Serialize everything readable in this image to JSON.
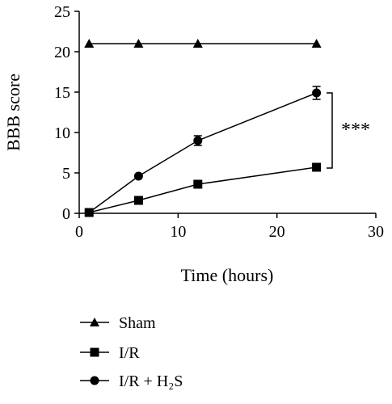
{
  "chart_data": {
    "type": "line",
    "xlabel": "Time (hours)",
    "ylabel": "BBB score",
    "xlim": [
      0,
      30
    ],
    "ylim": [
      0,
      25
    ],
    "xticks": [
      "0",
      "10",
      "20",
      "30"
    ],
    "yticks": [
      "0",
      "5",
      "10",
      "15",
      "20",
      "25"
    ],
    "grid": false,
    "legend_position": "bottom-left",
    "significance_label": "***",
    "series": [
      {
        "name": "Sham",
        "marker": "triangle",
        "x": [
          1,
          6,
          12,
          24
        ],
        "y": [
          21,
          21,
          21,
          21
        ],
        "error": [
          0,
          0,
          0,
          0
        ]
      },
      {
        "name": "I/R",
        "marker": "square",
        "x": [
          1,
          6,
          12,
          24
        ],
        "y": [
          0.1,
          1.6,
          3.6,
          5.7
        ],
        "error": [
          0,
          0,
          0.2,
          0.3
        ]
      },
      {
        "name": "I/R + H₂S",
        "marker": "circle",
        "x": [
          1,
          6,
          12,
          24
        ],
        "y": [
          0.1,
          4.6,
          9.0,
          14.9
        ],
        "error": [
          0,
          0,
          0.6,
          0.8
        ]
      }
    ]
  }
}
